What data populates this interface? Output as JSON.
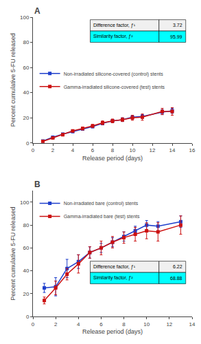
{
  "chart_data": [
    {
      "type": "line",
      "title": "A",
      "x": [
        1,
        2,
        3,
        4,
        5,
        6,
        7,
        8,
        9,
        10,
        11,
        13,
        14
      ],
      "series": [
        {
          "name": "Non-irradiated silicone-covered (control) stents",
          "color": "#1f3fcc",
          "marker": "square",
          "values": [
            1.5,
            4.5,
            7.0,
            9.0,
            11.0,
            13.0,
            15.5,
            17.5,
            18.5,
            20.5,
            21.0,
            24.5,
            25.5
          ],
          "error": [
            0.5,
            0.8,
            0.8,
            0.8,
            1.0,
            1.0,
            1.2,
            1.2,
            1.5,
            1.5,
            1.5,
            2.0,
            2.0
          ]
        },
        {
          "name": "Gamma-irradiated silicone-covered (test) stents",
          "color": "#cc1111",
          "marker": "square",
          "values": [
            1.2,
            4.0,
            6.5,
            9.5,
            11.5,
            13.5,
            16.0,
            17.5,
            18.5,
            20.0,
            20.5,
            25.0,
            25.0
          ],
          "error": [
            0.5,
            0.8,
            1.0,
            1.0,
            1.2,
            1.2,
            1.5,
            1.5,
            1.5,
            2.0,
            2.5,
            2.5,
            3.0
          ]
        }
      ],
      "xlim": [
        0,
        16
      ],
      "ylim": [
        0,
        100
      ],
      "xticks": [
        0,
        2,
        4,
        6,
        8,
        10,
        12,
        14,
        16
      ],
      "yticks": [
        0,
        20,
        40,
        60,
        80,
        100
      ],
      "xlabel": "Release period (days)",
      "ylabel": "Percent cumulative 5-FU released",
      "grid": false,
      "legend": "center left",
      "annotations": [
        {
          "label": "Difference factor, ƒ¹",
          "value": 3.72,
          "color": "#f0f0f0"
        },
        {
          "label": "Similarity factor, ƒ²",
          "value": 95.99,
          "color": "#00ffff"
        }
      ]
    },
    {
      "type": "line",
      "title": "B",
      "x": [
        1,
        2,
        3,
        4,
        5,
        6,
        7,
        8,
        9,
        10,
        11,
        13
      ],
      "series": [
        {
          "name": "Non-irradiated bare (control) stents",
          "color": "#1f3fcc",
          "marker": "square",
          "values": [
            25.0,
            26.0,
            42.0,
            48.0,
            56.0,
            60.0,
            65.0,
            70.0,
            75.0,
            80.0,
            79.0,
            83.0
          ],
          "error": [
            4.0,
            8.0,
            8.0,
            6.0,
            5.0,
            4.0,
            4.0,
            4.0,
            4.0,
            4.0,
            4.0,
            5.0
          ]
        },
        {
          "name": "Gamma-irradiated bare (test) stents",
          "color": "#cc1111",
          "marker": "square",
          "values": [
            14.0,
            25.0,
            37.0,
            46.0,
            56.0,
            60.0,
            65.0,
            69.0,
            72.0,
            75.0,
            74.0,
            80.0
          ],
          "error": [
            3.0,
            6.0,
            5.0,
            8.0,
            5.0,
            6.0,
            5.0,
            5.0,
            6.0,
            7.0,
            8.0,
            8.0
          ]
        }
      ],
      "xlim": [
        0,
        14
      ],
      "ylim": [
        0,
        110
      ],
      "xticks": [
        0,
        2,
        4,
        6,
        8,
        10,
        12,
        14
      ],
      "yticks": [
        0,
        20,
        40,
        60,
        80,
        100
      ],
      "xlabel": "Release period (days)",
      "ylabel": "Percent cumulative 5-FU released",
      "grid": false,
      "legend": "upper left",
      "annotations": [
        {
          "label": "Difference factor, ƒ¹",
          "value": 6.22,
          "color": "#f0f0f0"
        },
        {
          "label": "Similarity factor, ƒ²",
          "value": 68.88,
          "color": "#00ffff"
        }
      ]
    }
  ]
}
